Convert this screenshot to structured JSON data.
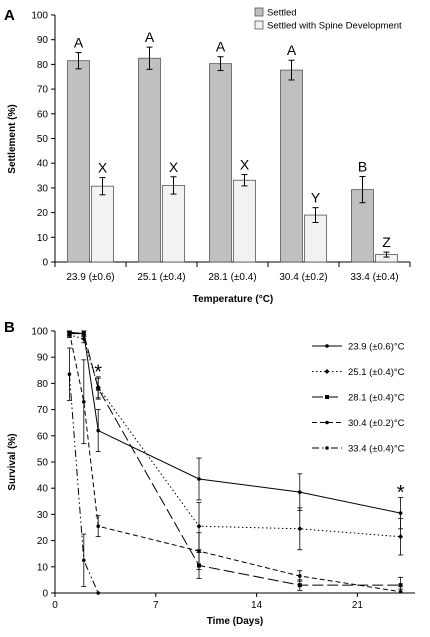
{
  "panels": {
    "a": "A",
    "b": "B"
  },
  "chart_data": [
    {
      "type": "bar",
      "categories": [
        "23.9 (±0.6)",
        "25.1 (±0.4)",
        "28.1 (±0.4)",
        "30.4 (±0.2)",
        "33.4 (±0.4)"
      ],
      "xlabel": "Temperature (°C)",
      "ylabel": "Settlement (%)",
      "ylim": [
        0,
        100
      ],
      "yticks": [
        0,
        10,
        20,
        30,
        40,
        50,
        60,
        70,
        80,
        90,
        100
      ],
      "legend_position": "top-right",
      "series": [
        {
          "name": "Settled",
          "color": "#c0c0c0",
          "values": [
            81.5,
            82.5,
            80.3,
            77.7,
            29.3
          ],
          "errors": [
            3.3,
            4.5,
            2.8,
            4.0,
            5.3
          ],
          "letters": [
            "A",
            "A",
            "A",
            "A",
            "B"
          ]
        },
        {
          "name": "Settled with Spine Development",
          "color": "#f2f2f2",
          "values": [
            30.7,
            31.0,
            33.1,
            19.0,
            3.0
          ],
          "errors": [
            3.5,
            3.5,
            2.3,
            3.0,
            1.0
          ],
          "letters": [
            "X",
            "X",
            "X",
            "Y",
            "Z"
          ]
        }
      ]
    },
    {
      "type": "line",
      "xlabel": "Time (Days)",
      "ylabel": "Survival (%)",
      "xlim": [
        0,
        25
      ],
      "ylim": [
        0,
        100
      ],
      "xticks": [
        0,
        7,
        14,
        21
      ],
      "yticks": [
        0,
        10,
        20,
        30,
        40,
        50,
        60,
        70,
        80,
        90,
        100
      ],
      "legend_position": "top-right",
      "annotations": [
        {
          "text": "*",
          "x": 3,
          "y": 85
        },
        {
          "text": "*",
          "x": 24,
          "y": 39
        }
      ],
      "series": [
        {
          "name": "23.9 (±0.6)°C",
          "x": [
            1,
            2,
            3,
            10,
            17,
            24
          ],
          "y": [
            99.5,
            99.0,
            62.0,
            43.5,
            38.5,
            30.5
          ],
          "errors": [
            1,
            1,
            8,
            8,
            7,
            6
          ],
          "dash": "",
          "marker": "line"
        },
        {
          "name": "25.1 (±0.4)°C",
          "x": [
            1,
            2,
            3,
            10,
            17,
            24
          ],
          "y": [
            98.5,
            97.0,
            78.5,
            25.5,
            24.5,
            21.5
          ],
          "errors": [
            1,
            1.5,
            4,
            9,
            8,
            7
          ],
          "dash": "1.5,2.5",
          "marker": "diamond"
        },
        {
          "name": "28.1 (±0.4)°C",
          "x": [
            1,
            2,
            3,
            10,
            17,
            24
          ],
          "y": [
            99.0,
            99.0,
            78.0,
            10.5,
            3.0,
            3.0
          ],
          "errors": [
            1,
            1,
            4,
            5,
            2,
            3
          ],
          "dash": "11,4",
          "marker": "square"
        },
        {
          "name": "30.4 (±0.2)°C",
          "x": [
            1,
            2,
            3,
            10,
            17,
            24
          ],
          "y": [
            99.5,
            73.0,
            25.5,
            16.0,
            6.5,
            0.5
          ],
          "errors": [
            1,
            16,
            4,
            7,
            2,
            1
          ],
          "dash": "5,3",
          "marker": "dot"
        },
        {
          "name": "33.4 (±0.4)°C",
          "x": [
            1,
            2,
            3
          ],
          "y": [
            83.5,
            12.5,
            0
          ],
          "errors": [
            10,
            10,
            0
          ],
          "dash": "7,3,1.5,3,1.5,3",
          "marker": "line"
        }
      ]
    }
  ]
}
